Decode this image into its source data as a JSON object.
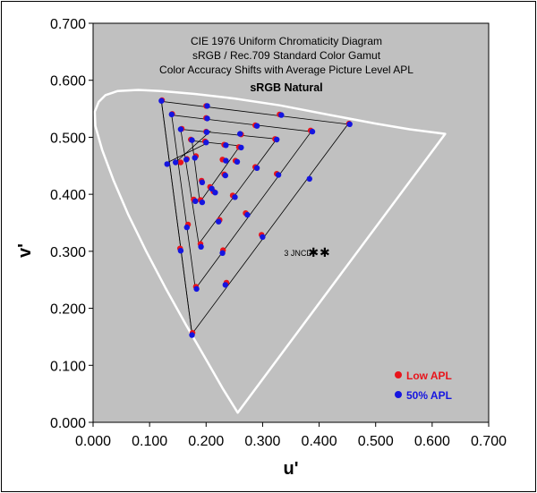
{
  "chart_data": {
    "type": "scatter",
    "title_lines": [
      "CIE 1976 Uniform Chromaticity Diagram",
      "sRGB / Rec.709 Standard Color Gamut",
      "Color Accuracy Shifts with Average Picture Level APL"
    ],
    "subtitle": "sRGB Natural",
    "xlabel": "u'",
    "ylabel": "v'",
    "xlim": [
      0,
      0.7
    ],
    "ylim": [
      0,
      0.7
    ],
    "x_ticks": [
      "0.000",
      "0.100",
      "0.200",
      "0.300",
      "0.400",
      "0.500",
      "0.600",
      "0.700"
    ],
    "y_ticks": [
      "0.000",
      "0.100",
      "0.200",
      "0.300",
      "0.400",
      "0.500",
      "0.600",
      "0.700"
    ],
    "legend": {
      "placement": "bottom-right",
      "entries": [
        {
          "label": "Low APL",
          "color": "#e8141b"
        },
        {
          "label": "50% APL",
          "color": "#1515e0"
        }
      ]
    },
    "annotation": {
      "text": "3 JNCD",
      "x": 0.338,
      "y": 0.298
    },
    "jncd_markers": [
      [
        0.39,
        0.298
      ],
      [
        0.41,
        0.298
      ]
    ],
    "plot_background": "#c0c0c0",
    "spectral_locus_color": "#ffffff",
    "spectral_locus": [
      [
        0.256,
        0.017
      ],
      [
        0.229,
        0.06
      ],
      [
        0.2,
        0.11
      ],
      [
        0.165,
        0.17
      ],
      [
        0.128,
        0.236
      ],
      [
        0.094,
        0.3
      ],
      [
        0.062,
        0.365
      ],
      [
        0.036,
        0.425
      ],
      [
        0.016,
        0.478
      ],
      [
        0.004,
        0.52
      ],
      [
        0.003,
        0.545
      ],
      [
        0.01,
        0.562
      ],
      [
        0.022,
        0.574
      ],
      [
        0.043,
        0.581
      ],
      [
        0.08,
        0.583
      ],
      [
        0.12,
        0.581
      ],
      [
        0.18,
        0.576
      ],
      [
        0.25,
        0.568
      ],
      [
        0.33,
        0.556
      ],
      [
        0.42,
        0.539
      ],
      [
        0.5,
        0.524
      ],
      [
        0.56,
        0.514
      ],
      [
        0.623,
        0.506
      ]
    ],
    "target_gamut_lines": [
      [
        [
          0.175,
          0.155
        ],
        [
          0.451,
          0.523
        ],
        [
          0.121,
          0.563
        ],
        [
          0.175,
          0.155
        ]
      ],
      [
        [
          0.181,
          0.234
        ],
        [
          0.386,
          0.51
        ],
        [
          0.139,
          0.539
        ],
        [
          0.181,
          0.234
        ]
      ],
      [
        [
          0.187,
          0.313
        ],
        [
          0.325,
          0.497
        ],
        [
          0.155,
          0.514
        ],
        [
          0.187,
          0.313
        ]
      ],
      [
        [
          0.189,
          0.386
        ],
        [
          0.26,
          0.485
        ],
        [
          0.175,
          0.494
        ],
        [
          0.189,
          0.386
        ]
      ],
      [
        [
          0.13,
          0.455
        ],
        [
          0.198,
          0.488
        ]
      ],
      [
        [
          0.146,
          0.456
        ],
        [
          0.208,
          0.511
        ]
      ],
      [
        [
          0.175,
          0.155
        ],
        [
          0.121,
          0.563
        ]
      ]
    ],
    "series": [
      {
        "name": "Low APL",
        "color": "#e8141b",
        "points": [
          [
            0.122,
            0.565
          ],
          [
            0.2,
            0.555
          ],
          [
            0.33,
            0.54
          ],
          [
            0.453,
            0.524
          ],
          [
            0.14,
            0.541
          ],
          [
            0.2,
            0.534
          ],
          [
            0.287,
            0.521
          ],
          [
            0.385,
            0.512
          ],
          [
            0.157,
            0.515
          ],
          [
            0.2,
            0.51
          ],
          [
            0.262,
            0.505
          ],
          [
            0.322,
            0.497
          ],
          [
            0.173,
            0.496
          ],
          [
            0.198,
            0.493
          ],
          [
            0.232,
            0.487
          ],
          [
            0.258,
            0.483
          ],
          [
            0.155,
            0.456
          ],
          [
            0.166,
            0.462
          ],
          [
            0.182,
            0.467
          ],
          [
            0.229,
            0.461
          ],
          [
            0.252,
            0.459
          ],
          [
            0.232,
            0.435
          ],
          [
            0.287,
            0.448
          ],
          [
            0.325,
            0.436
          ],
          [
            0.207,
            0.413
          ],
          [
            0.247,
            0.398
          ],
          [
            0.192,
            0.424
          ],
          [
            0.178,
            0.391
          ],
          [
            0.19,
            0.39
          ],
          [
            0.213,
            0.405
          ],
          [
            0.27,
            0.367
          ],
          [
            0.298,
            0.329
          ],
          [
            0.168,
            0.347
          ],
          [
            0.224,
            0.355
          ],
          [
            0.154,
            0.305
          ],
          [
            0.19,
            0.313
          ],
          [
            0.23,
            0.302
          ],
          [
            0.182,
            0.238
          ],
          [
            0.236,
            0.245
          ],
          [
            0.176,
            0.157
          ]
        ]
      },
      {
        "name": "50% APL",
        "color": "#1515e0",
        "points": [
          [
            0.121,
            0.564
          ],
          [
            0.202,
            0.555
          ],
          [
            0.333,
            0.539
          ],
          [
            0.454,
            0.523
          ],
          [
            0.139,
            0.54
          ],
          [
            0.202,
            0.533
          ],
          [
            0.29,
            0.52
          ],
          [
            0.388,
            0.51
          ],
          [
            0.155,
            0.514
          ],
          [
            0.201,
            0.509
          ],
          [
            0.26,
            0.506
          ],
          [
            0.325,
            0.496
          ],
          [
            0.175,
            0.495
          ],
          [
            0.2,
            0.491
          ],
          [
            0.235,
            0.486
          ],
          [
            0.262,
            0.482
          ],
          [
            0.131,
            0.453
          ],
          [
            0.146,
            0.456
          ],
          [
            0.165,
            0.461
          ],
          [
            0.18,
            0.464
          ],
          [
            0.235,
            0.459
          ],
          [
            0.255,
            0.457
          ],
          [
            0.234,
            0.433
          ],
          [
            0.29,
            0.446
          ],
          [
            0.328,
            0.434
          ],
          [
            0.383,
            0.427
          ],
          [
            0.21,
            0.41
          ],
          [
            0.251,
            0.395
          ],
          [
            0.193,
            0.421
          ],
          [
            0.181,
            0.388
          ],
          [
            0.193,
            0.386
          ],
          [
            0.216,
            0.403
          ],
          [
            0.273,
            0.364
          ],
          [
            0.3,
            0.325
          ],
          [
            0.166,
            0.342
          ],
          [
            0.222,
            0.352
          ],
          [
            0.155,
            0.301
          ],
          [
            0.191,
            0.308
          ],
          [
            0.229,
            0.297
          ],
          [
            0.183,
            0.234
          ],
          [
            0.234,
            0.241
          ],
          [
            0.175,
            0.153
          ]
        ]
      }
    ]
  }
}
